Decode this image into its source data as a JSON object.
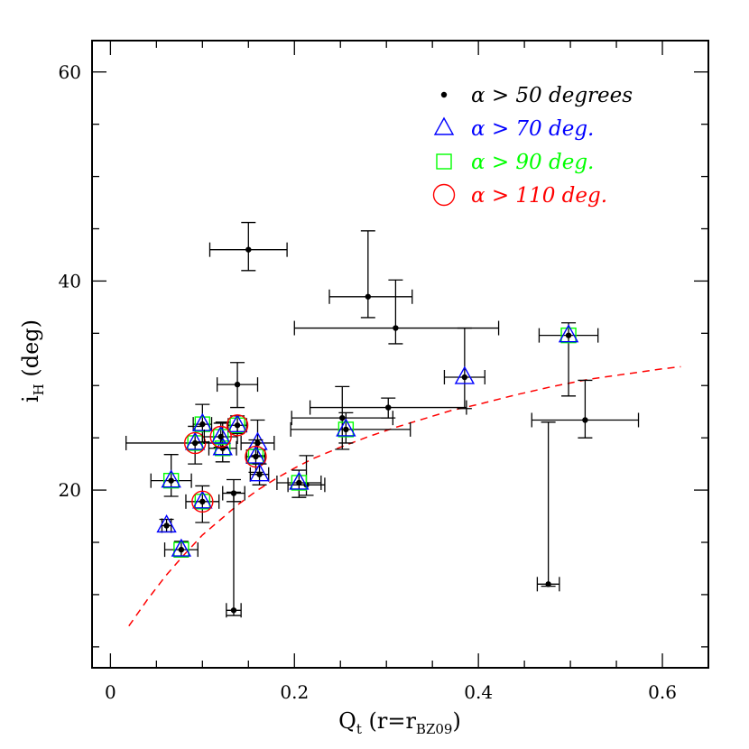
{
  "chart_data": {
    "type": "scatter",
    "xlabel": "Q",
    "xlabel_sub": "t",
    "xlabel_paren": "(r=r",
    "xlabel_paren_sub": "BZ09",
    "xlabel_paren_close": ")",
    "ylabel": "i",
    "ylabel_sub": "H",
    "ylabel_unit": " (deg)",
    "xlim": [
      -0.02,
      0.65
    ],
    "ylim": [
      3,
      63
    ],
    "xticks": [
      0,
      0.2,
      0.4,
      0.6
    ],
    "xtick_labels": [
      "0",
      "0.2",
      "0.4",
      "0.6"
    ],
    "yticks": [
      20,
      40,
      60
    ],
    "ytick_labels": [
      "20",
      "40",
      "60"
    ],
    "legend": [
      {
        "marker": "dot",
        "color": "#000000",
        "label": "α > 50 degrees"
      },
      {
        "marker": "triangle",
        "color": "#0000ff",
        "label": "α > 70 deg."
      },
      {
        "marker": "square",
        "color": "#00ff00",
        "label": "α > 90 deg."
      },
      {
        "marker": "circle",
        "color": "#ff0000",
        "label": "α > 110 deg."
      }
    ],
    "legend_position": "top-right",
    "curve": {
      "color": "#ff0000",
      "style": "dashed",
      "x": [
        0.02,
        0.04,
        0.06,
        0.08,
        0.1,
        0.12,
        0.14,
        0.16,
        0.18,
        0.2,
        0.22,
        0.25,
        0.28,
        0.31,
        0.34,
        0.37,
        0.4,
        0.44,
        0.48,
        0.52,
        0.56,
        0.6,
        0.62
      ],
      "y": [
        7.0,
        9.5,
        11.8,
        13.8,
        15.7,
        17.2,
        18.7,
        20.0,
        21.1,
        22.1,
        23.0,
        24.1,
        25.1,
        26.0,
        26.8,
        27.6,
        28.2,
        29.1,
        29.9,
        30.6,
        31.1,
        31.6,
        31.8
      ]
    },
    "points": [
      {
        "x": 0.15,
        "y": 43.0,
        "xerr": [
          0.042,
          0.042
        ],
        "yerr": [
          2.0,
          2.6
        ],
        "class": 0
      },
      {
        "x": 0.28,
        "y": 38.5,
        "xerr": [
          0.042,
          0.048
        ],
        "yerr": [
          2.0,
          6.3
        ],
        "class": 0
      },
      {
        "x": 0.31,
        "y": 35.5,
        "xerr": [
          0.11,
          0.112
        ],
        "yerr": [
          1.5,
          4.6
        ],
        "class": 0
      },
      {
        "x": 0.138,
        "y": 30.1,
        "xerr": [
          0.022,
          0.022
        ],
        "yerr": [
          2.2,
          2.1
        ],
        "class": 0
      },
      {
        "x": 0.252,
        "y": 26.9,
        "xerr": [
          0.055,
          0.055
        ],
        "yerr": [
          3.0,
          3.0
        ],
        "class": 0
      },
      {
        "x": 0.302,
        "y": 27.9,
        "xerr": [
          0.085,
          0.085
        ],
        "yerr": [
          1.0,
          0.9
        ],
        "class": 0
      },
      {
        "x": 0.516,
        "y": 26.7,
        "xerr": [
          0.058,
          0.058
        ],
        "yerr": [
          1.7,
          3.8
        ],
        "class": 0
      },
      {
        "x": 0.476,
        "y": 11.0,
        "xerr": [
          0.012,
          0.012
        ],
        "yerr": [
          0.2,
          15.5
        ],
        "class": 0
      },
      {
        "x": 0.134,
        "y": 8.5,
        "xerr": [
          0.008,
          0.008
        ],
        "yerr": [
          0.5,
          11.3
        ],
        "class": 0
      },
      {
        "x": 0.134,
        "y": 19.7,
        "xerr": [
          0.012,
          0.012
        ],
        "yerr": [
          0.8,
          1.3
        ],
        "class": 0
      },
      {
        "x": 0.213,
        "y": 20.5,
        "xerr": [
          0.02,
          0.02
        ],
        "yerr": [
          1.0,
          2.8
        ],
        "class": 0
      },
      {
        "x": 0.092,
        "y": 24.5,
        "xerr": [
          0.075,
          0.03
        ],
        "yerr": [
          2.0,
          1.6
        ],
        "class": 3
      },
      {
        "x": 0.122,
        "y": 24.0,
        "xerr": [
          0.015,
          0.015
        ],
        "yerr": [
          1.3,
          2.5
        ],
        "class": 2
      },
      {
        "x": 0.1,
        "y": 26.3,
        "xerr": [
          0.01,
          0.01
        ],
        "yerr": [
          1.7,
          1.9
        ],
        "class": 2
      },
      {
        "x": 0.066,
        "y": 20.9,
        "xerr": [
          0.022,
          0.022
        ],
        "yerr": [
          1.5,
          2.5
        ],
        "class": 2
      },
      {
        "x": 0.12,
        "y": 25.1,
        "xerr": [
          0.018,
          0.018
        ],
        "yerr": [
          1.0,
          1.3
        ],
        "class": 3
      },
      {
        "x": 0.138,
        "y": 26.2,
        "xerr": [
          0.01,
          0.01
        ],
        "yerr": [
          0.8,
          0.9
        ],
        "class": 3
      },
      {
        "x": 0.16,
        "y": 24.5,
        "xerr": [
          0.018,
          0.018
        ],
        "yerr": [
          1.2,
          2.2
        ],
        "class": 1
      },
      {
        "x": 0.158,
        "y": 23.2,
        "xerr": [
          0.01,
          0.01
        ],
        "yerr": [
          1.5,
          1.6
        ],
        "class": 3
      },
      {
        "x": 0.162,
        "y": 21.5,
        "xerr": [
          0.01,
          0.01
        ],
        "yerr": [
          1.0,
          1.0
        ],
        "class": 1
      },
      {
        "x": 0.1,
        "y": 18.9,
        "xerr": [
          0.018,
          0.018
        ],
        "yerr": [
          2.0,
          1.5
        ],
        "class": 3
      },
      {
        "x": 0.061,
        "y": 16.6,
        "xerr": [
          0.005,
          0.005
        ],
        "yerr": [
          0.6,
          0.6
        ],
        "class": 1
      },
      {
        "x": 0.077,
        "y": 14.3,
        "xerr": [
          0.018,
          0.018
        ],
        "yerr": [
          0.7,
          0.8
        ],
        "class": 2
      },
      {
        "x": 0.205,
        "y": 20.7,
        "xerr": [
          0.024,
          0.024
        ],
        "yerr": [
          1.4,
          1.2
        ],
        "class": 2
      },
      {
        "x": 0.256,
        "y": 25.8,
        "xerr": [
          0.06,
          0.07
        ],
        "yerr": [
          1.3,
          1.6
        ],
        "class": 2
      },
      {
        "x": 0.385,
        "y": 30.8,
        "xerr": [
          0.022,
          0.022
        ],
        "yerr": [
          3.0,
          4.7
        ],
        "class": 1
      },
      {
        "x": 0.498,
        "y": 34.8,
        "xerr": [
          0.032,
          0.032
        ],
        "yerr": [
          5.8,
          1.2
        ],
        "class": 2
      }
    ]
  }
}
